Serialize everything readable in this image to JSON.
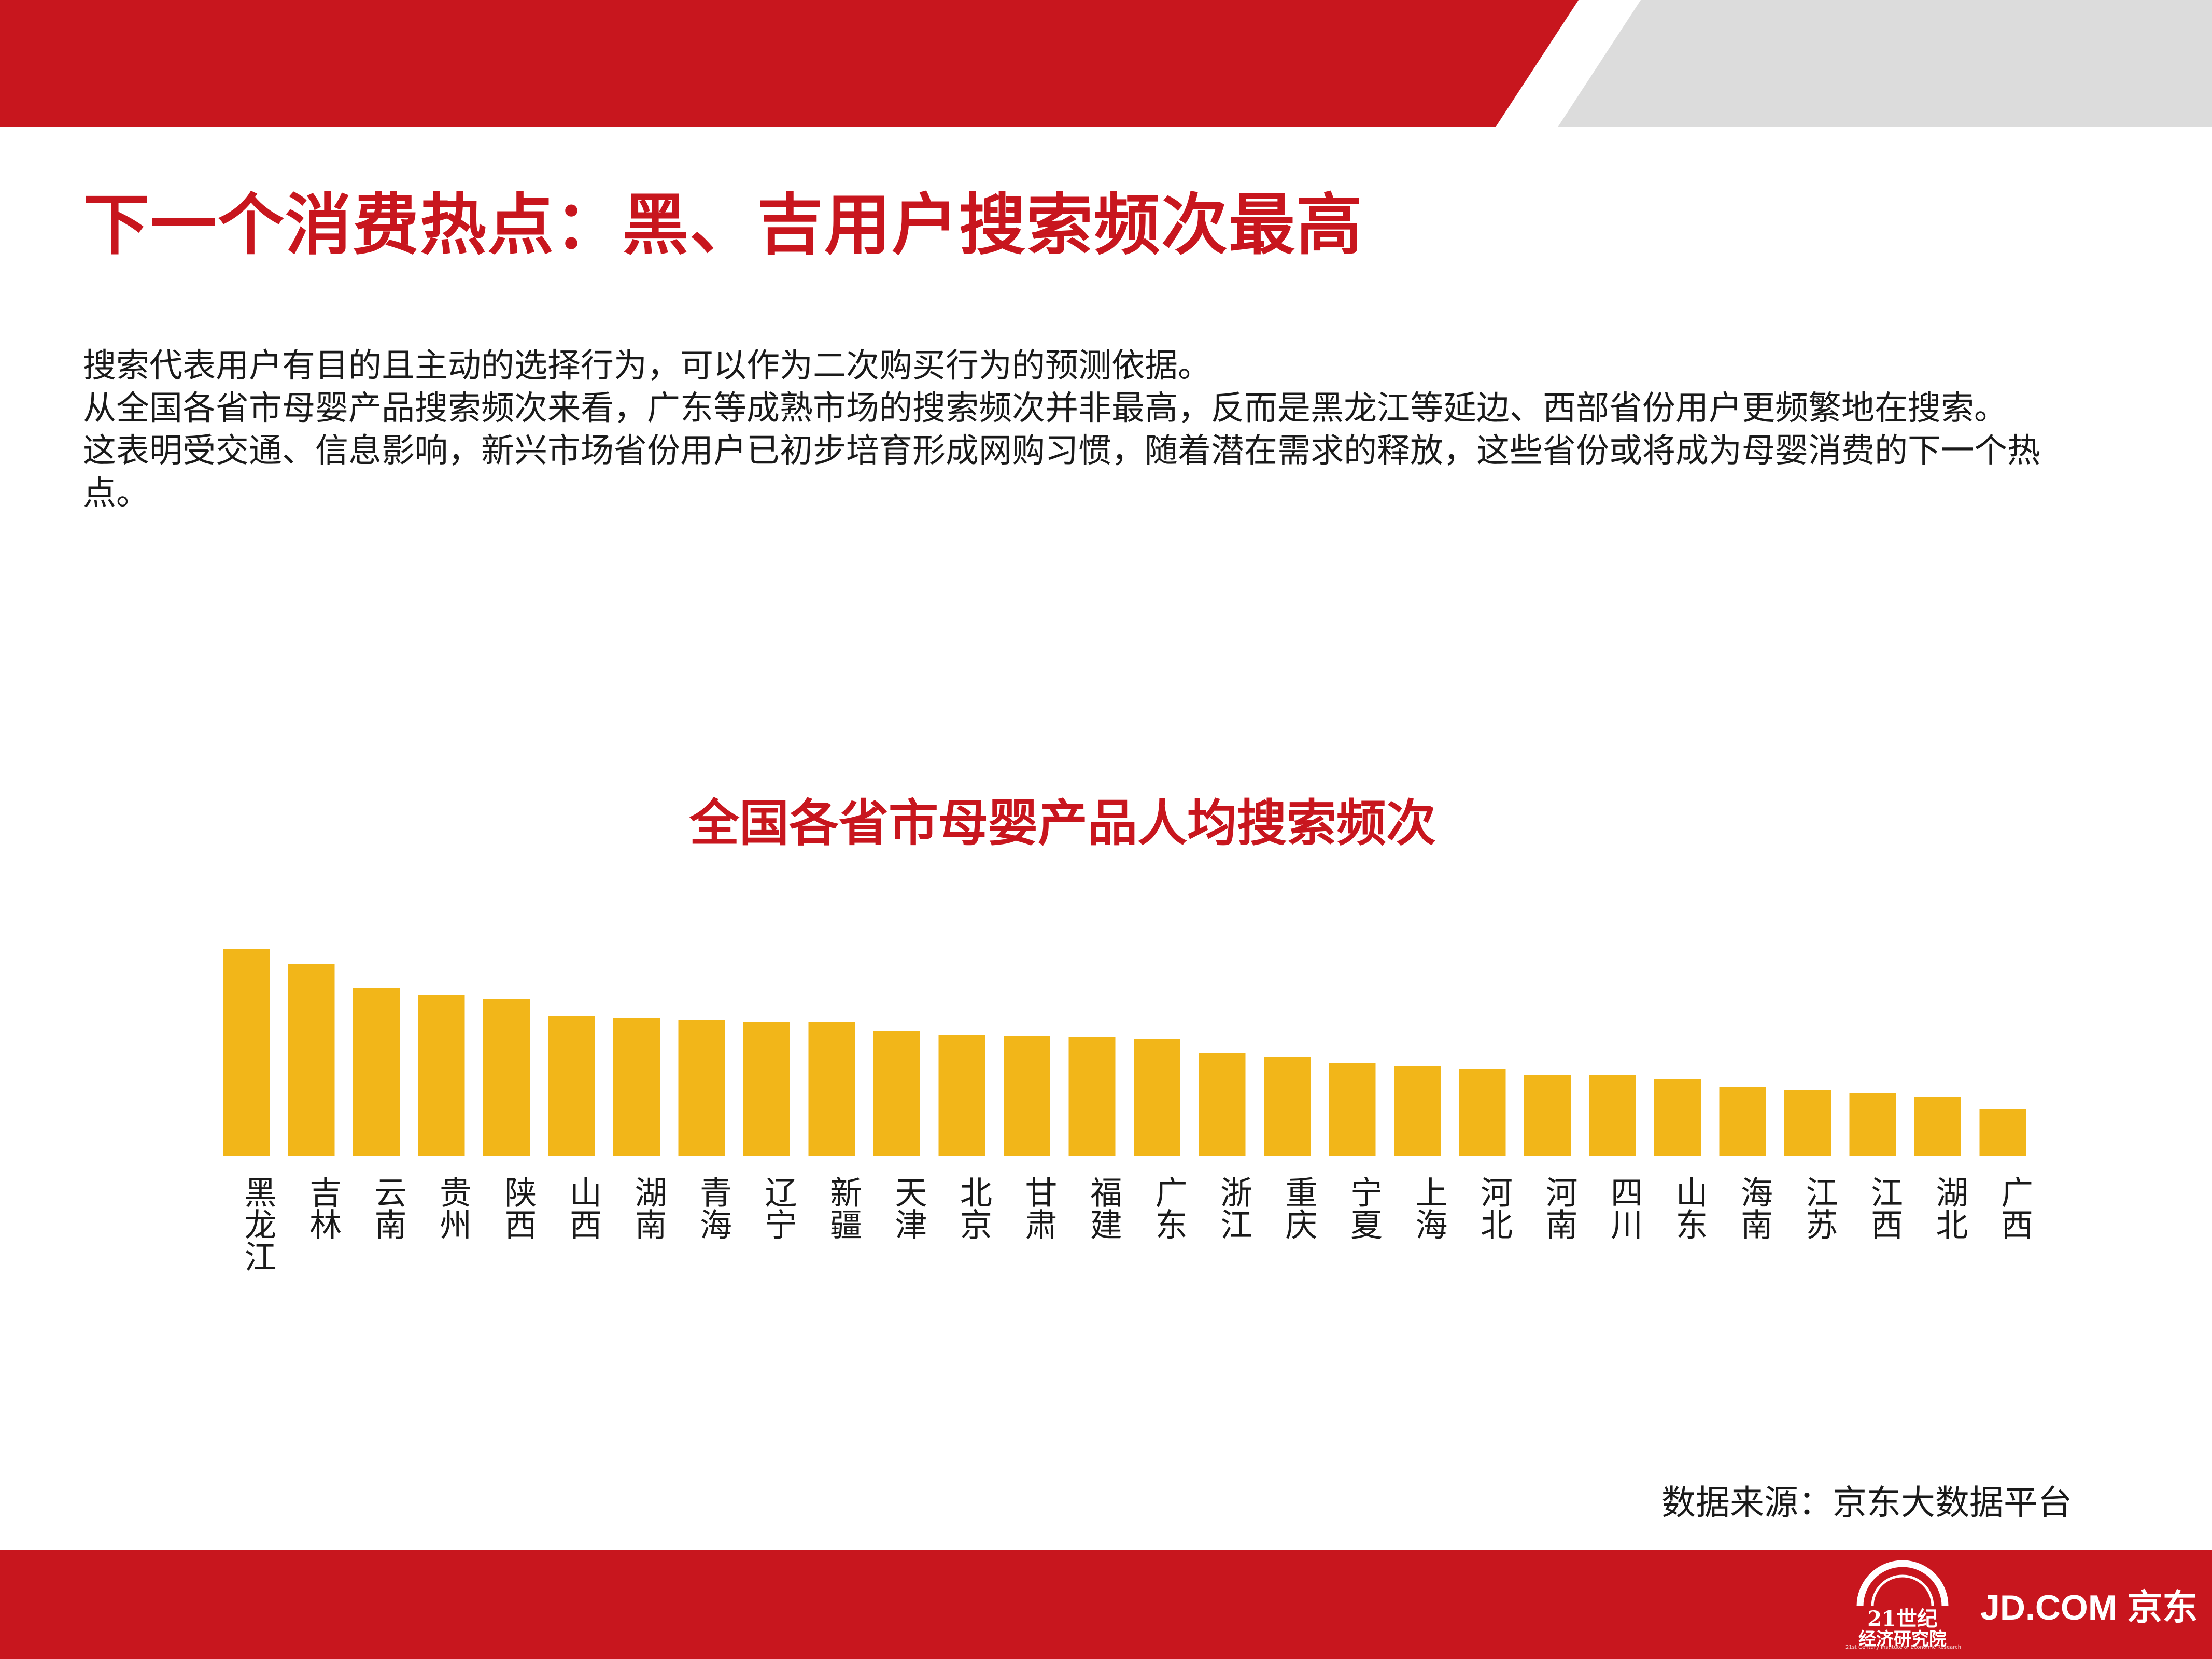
{
  "colors": {
    "accent": "#c8161e",
    "bar": "#f2b619",
    "gray_band": "#dcdcdc"
  },
  "header": {
    "title": "下一个消费热点：黑、吉用户搜索频次最高"
  },
  "description": [
    "搜索代表用户有目的且主动的选择行为，可以作为二次购买行为的预测依据。",
    "从全国各省市母婴产品搜索频次来看，广东等成熟市场的搜索频次并非最高，反而是黑龙江等延边、西部省份用户更频繁地在搜索。",
    "这表明受交通、信息影响，新兴市场省份用户已初步培育形成网购习惯，随着潜在需求的释放，这些省份或将成为母婴消费的下一个热点。"
  ],
  "chart_data": {
    "type": "bar",
    "title": "全国各省市母婴产品人均搜索频次",
    "xlabel": "",
    "ylabel": "",
    "ylim": [
      0,
      100
    ],
    "grid": false,
    "categories": [
      "黑龙江",
      "吉林",
      "云南",
      "贵州",
      "陕西",
      "山西",
      "湖南",
      "青海",
      "辽宁",
      "新疆",
      "天津",
      "北京",
      "甘肃",
      "福建",
      "广东",
      "浙江",
      "重庆",
      "宁夏",
      "上海",
      "河北",
      "河南",
      "四川",
      "山东",
      "海南",
      "江苏",
      "江西",
      "湖北",
      "广西"
    ],
    "values": [
      100,
      92.5,
      81,
      77.5,
      76,
      67.5,
      66.5,
      65.5,
      64.5,
      64.5,
      60.5,
      58.5,
      58,
      57.5,
      56.5,
      49.5,
      48,
      45,
      43.5,
      42,
      39,
      39,
      37,
      33.5,
      32,
      30.5,
      28.5,
      22.5
    ],
    "value_note": "relative scale (tallest bar = 100); no axis or data labels shown"
  },
  "source": {
    "text": "数据来源：京东大数据平台"
  },
  "logos": {
    "institute_main": "21世纪",
    "institute_sub": "经济研究院",
    "institute_tiny": "21st Century Institute of Economic Research",
    "jd": "JD.COM 京东"
  }
}
